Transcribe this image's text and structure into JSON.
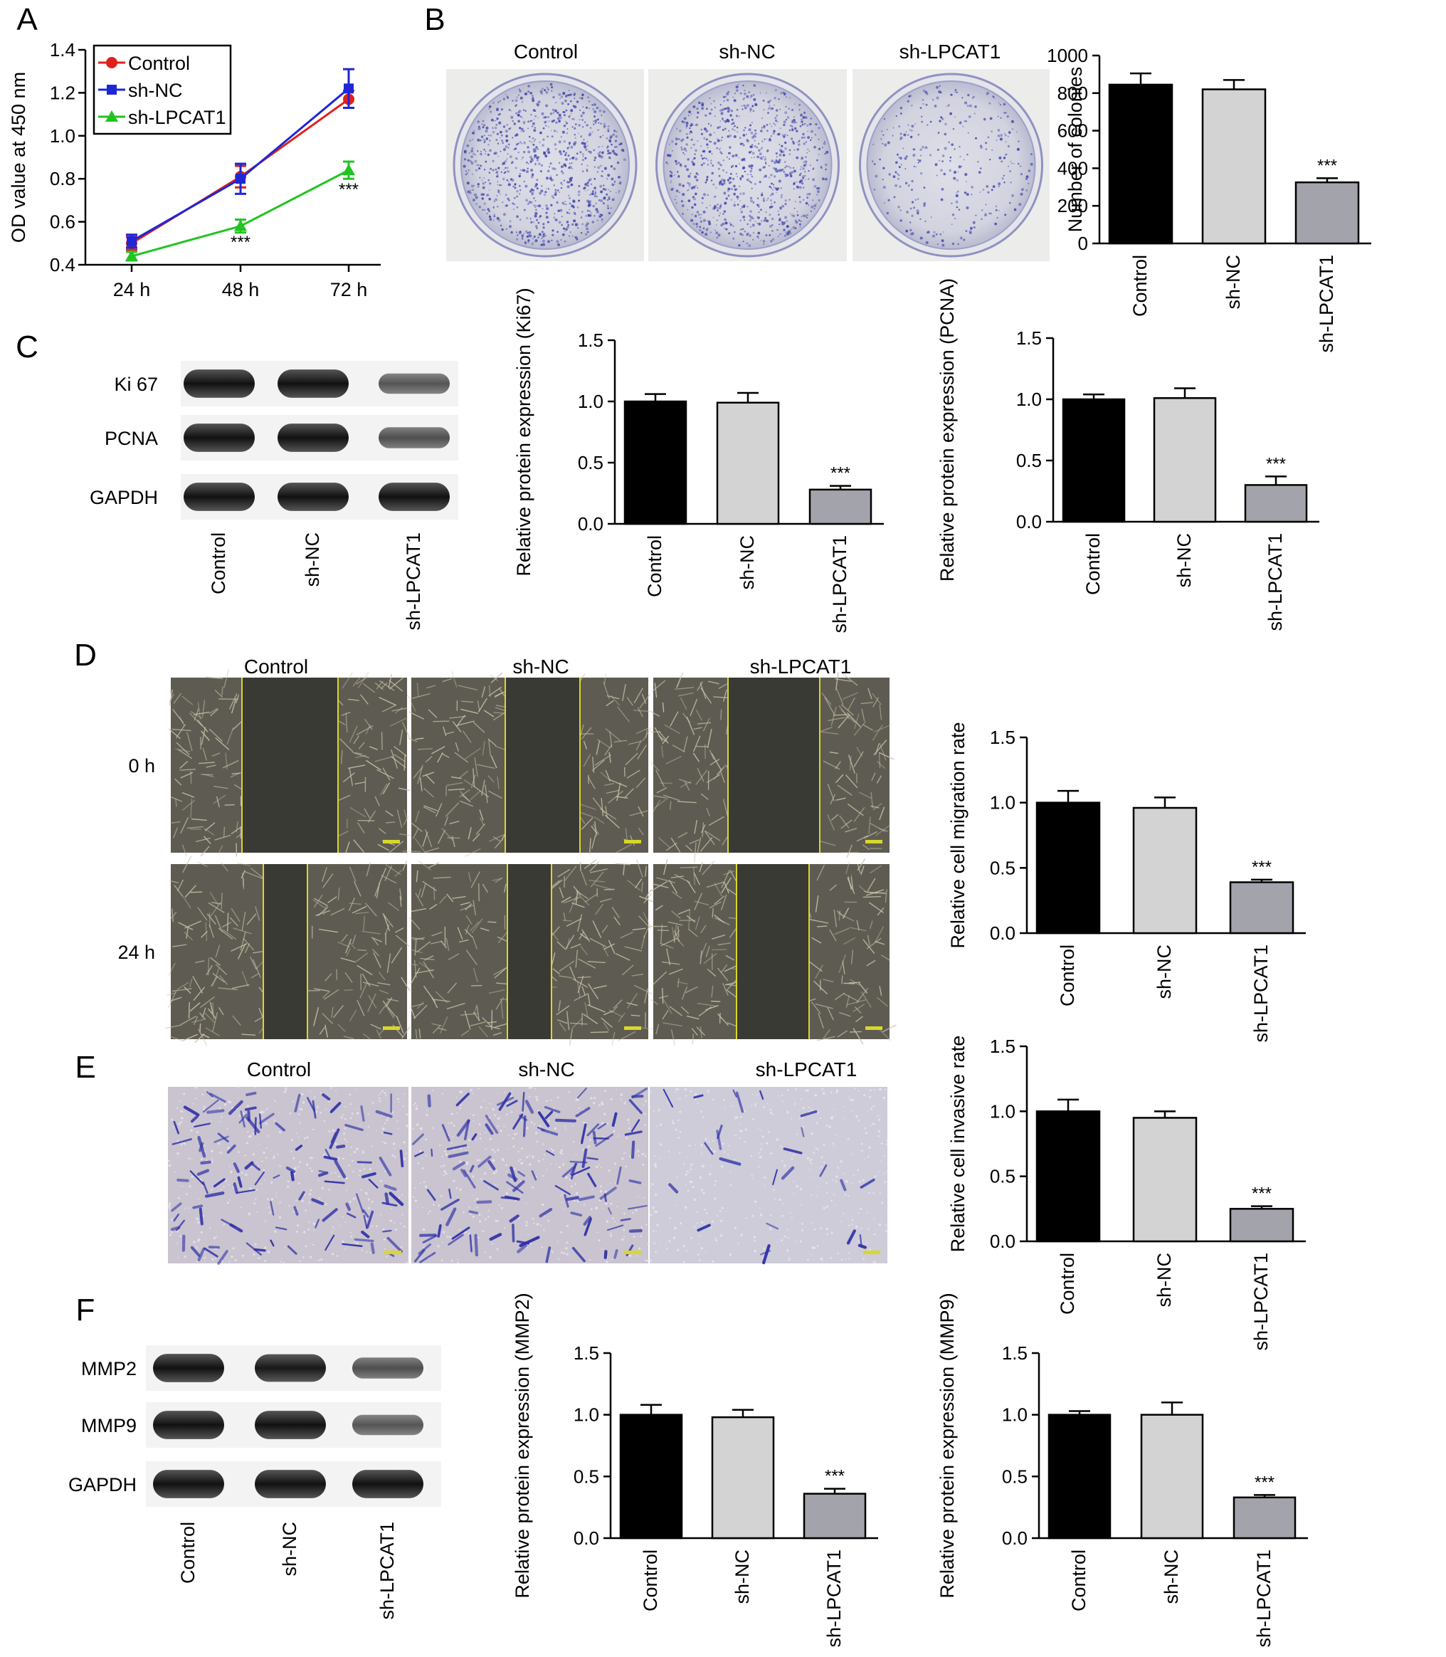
{
  "panel_letters": [
    "A",
    "B",
    "C",
    "D",
    "E",
    "F"
  ],
  "group_labels": [
    "Control",
    "sh-NC",
    "sh-LPCAT1"
  ],
  "significance": "***",
  "colors": {
    "control_line": "#e0201b",
    "shnc_line": "#1f26d6",
    "shlpcat1_line": "#21c421",
    "bar_control": "#000000",
    "bar_shnc": "#d3d3d3",
    "bar_shlpcat1": "#a3a3ab",
    "stain": "#3b3ea8",
    "blot_band": "#1a1a1a"
  },
  "blots": {
    "C": {
      "rows": [
        "Ki 67",
        "PCNA",
        "GAPDH"
      ],
      "lanes": [
        "Control",
        "sh-NC",
        "sh-LPCAT1"
      ]
    },
    "F": {
      "rows": [
        "MMP2",
        "MMP9",
        "GAPDH"
      ],
      "lanes": [
        "Control",
        "sh-NC",
        "sh-LPCAT1"
      ]
    }
  },
  "images": {
    "B": {
      "columns": [
        "Control",
        "sh-NC",
        "sh-LPCAT1"
      ]
    },
    "D": {
      "columns": [
        "Control",
        "sh-NC",
        "sh-LPCAT1"
      ],
      "rows": [
        "0 h",
        "24 h"
      ]
    },
    "E": {
      "columns": [
        "Control",
        "sh-NC",
        "sh-LPCAT1"
      ]
    }
  },
  "chart_data": [
    {
      "id": "A",
      "type": "line",
      "x": [
        "24 h",
        "48 h",
        "72 h"
      ],
      "ylabel": "OD value at 450 nm",
      "ylim": [
        0.4,
        1.4
      ],
      "yticks": [
        "0.4",
        "0.6",
        "0.8",
        "1.0",
        "1.2",
        "1.4"
      ],
      "legend": "top-left",
      "series": [
        {
          "name": "Control",
          "values": [
            0.5,
            0.81,
            1.17
          ],
          "errors": [
            0.03,
            0.05,
            0.04
          ],
          "color": "#e0201b",
          "marker": "circle"
        },
        {
          "name": "sh-NC",
          "values": [
            0.51,
            0.8,
            1.22
          ],
          "errors": [
            0.03,
            0.07,
            0.09
          ],
          "color": "#1f26d6",
          "marker": "square"
        },
        {
          "name": "sh-LPCAT1",
          "values": [
            0.44,
            0.58,
            0.84
          ],
          "errors": [
            0.02,
            0.03,
            0.04
          ],
          "color": "#21c421",
          "marker": "triangle"
        }
      ],
      "annotations": [
        {
          "x": "48 h",
          "text": "***"
        },
        {
          "x": "72 h",
          "text": "***"
        }
      ]
    },
    {
      "id": "B",
      "type": "bar",
      "categories": [
        "Control",
        "sh-NC",
        "sh-LPCAT1"
      ],
      "values": [
        845,
        820,
        325
      ],
      "errors": [
        60,
        50,
        22
      ],
      "ylabel": "Number of colonies",
      "ylim": [
        0,
        1000
      ],
      "yticks": [
        "0",
        "200",
        "400",
        "600",
        "800",
        "1000"
      ],
      "annotations": [
        {
          "category": "sh-LPCAT1",
          "text": "***"
        }
      ]
    },
    {
      "id": "C-Ki67",
      "type": "bar",
      "categories": [
        "Control",
        "sh-NC",
        "sh-LPCAT1"
      ],
      "values": [
        1.0,
        0.99,
        0.28
      ],
      "errors": [
        0.06,
        0.08,
        0.03
      ],
      "ylabel": "Relative protein expression (Ki67)",
      "ylim": [
        0,
        1.5
      ],
      "yticks": [
        "0.0",
        "0.5",
        "1.0",
        "1.5"
      ],
      "annotations": [
        {
          "category": "sh-LPCAT1",
          "text": "***"
        }
      ]
    },
    {
      "id": "C-PCNA",
      "type": "bar",
      "categories": [
        "Control",
        "sh-NC",
        "sh-LPCAT1"
      ],
      "values": [
        1.0,
        1.01,
        0.3
      ],
      "errors": [
        0.04,
        0.08,
        0.07
      ],
      "ylabel": "Relative protein expression (PCNA)",
      "ylim": [
        0,
        1.5
      ],
      "yticks": [
        "0.0",
        "0.5",
        "1.0",
        "1.5"
      ],
      "annotations": [
        {
          "category": "sh-LPCAT1",
          "text": "***"
        }
      ]
    },
    {
      "id": "D",
      "type": "bar",
      "categories": [
        "Control",
        "sh-NC",
        "sh-LPCAT1"
      ],
      "values": [
        1.0,
        0.96,
        0.39
      ],
      "errors": [
        0.09,
        0.08,
        0.02
      ],
      "ylabel": "Relative cell migration rate",
      "ylim": [
        0,
        1.5
      ],
      "yticks": [
        "0.0",
        "0.5",
        "1.0",
        "1.5"
      ],
      "annotations": [
        {
          "category": "sh-LPCAT1",
          "text": "***"
        }
      ]
    },
    {
      "id": "E",
      "type": "bar",
      "categories": [
        "Control",
        "sh-NC",
        "sh-LPCAT1"
      ],
      "values": [
        1.0,
        0.95,
        0.25
      ],
      "errors": [
        0.09,
        0.05,
        0.02
      ],
      "ylabel": "Relative cell invasive rate",
      "ylim": [
        0,
        1.5
      ],
      "yticks": [
        "0.0",
        "0.5",
        "1.0",
        "1.5"
      ],
      "annotations": [
        {
          "category": "sh-LPCAT1",
          "text": "***"
        }
      ]
    },
    {
      "id": "F-MMP2",
      "type": "bar",
      "categories": [
        "Control",
        "sh-NC",
        "sh-LPCAT1"
      ],
      "values": [
        1.0,
        0.98,
        0.36
      ],
      "errors": [
        0.08,
        0.06,
        0.04
      ],
      "ylabel": "Relative protein expression (MMP2)",
      "ylim": [
        0,
        1.5
      ],
      "yticks": [
        "0.0",
        "0.5",
        "1.0",
        "1.5"
      ],
      "annotations": [
        {
          "category": "sh-LPCAT1",
          "text": "***"
        }
      ]
    },
    {
      "id": "F-MMP9",
      "type": "bar",
      "categories": [
        "Control",
        "sh-NC",
        "sh-LPCAT1"
      ],
      "values": [
        1.0,
        1.0,
        0.33
      ],
      "errors": [
        0.03,
        0.1,
        0.02
      ],
      "ylabel": "Relative protein expression (MMP9)",
      "ylim": [
        0,
        1.5
      ],
      "yticks": [
        "0.0",
        "0.5",
        "1.0",
        "1.5"
      ],
      "annotations": [
        {
          "category": "sh-LPCAT1",
          "text": "***"
        }
      ]
    }
  ]
}
